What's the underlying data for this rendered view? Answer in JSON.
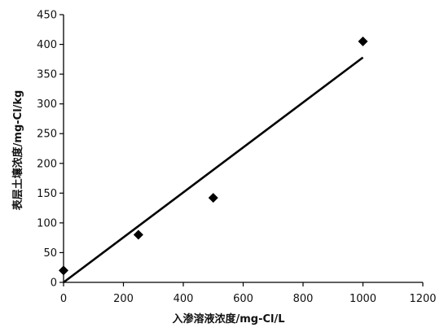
{
  "chart_data": {
    "type": "scatter",
    "xlabel": "入渗溶液浓度/mg-Cl/L",
    "ylabel": "表层土壤浓度/mg-Cl/kg",
    "xlim": [
      0,
      1200
    ],
    "ylim": [
      0,
      450
    ],
    "x_ticks": [
      0,
      200,
      400,
      600,
      800,
      1000,
      1200
    ],
    "y_ticks": [
      0,
      50,
      100,
      150,
      200,
      250,
      300,
      350,
      400,
      450
    ],
    "x_tick_labels": [
      "0",
      "200",
      "400",
      "600",
      "800",
      "1000",
      "1200"
    ],
    "y_tick_labels": [
      "0",
      "50",
      "100",
      "150",
      "200",
      "250",
      "300",
      "350",
      "400",
      "450"
    ],
    "series": [
      {
        "marker": "diamond",
        "points": [
          {
            "x": 0,
            "y": 20
          },
          {
            "x": 250,
            "y": 80
          },
          {
            "x": 500,
            "y": 142
          },
          {
            "x": 1000,
            "y": 405
          }
        ]
      }
    ],
    "trendline": {
      "type": "linear",
      "points": [
        {
          "x": 0,
          "y": 0
        },
        {
          "x": 1000,
          "y": 378
        }
      ]
    },
    "grid": false,
    "legend": "none",
    "colors": {
      "marker": "#000000",
      "line": "#000000",
      "axis": "#000000"
    }
  }
}
